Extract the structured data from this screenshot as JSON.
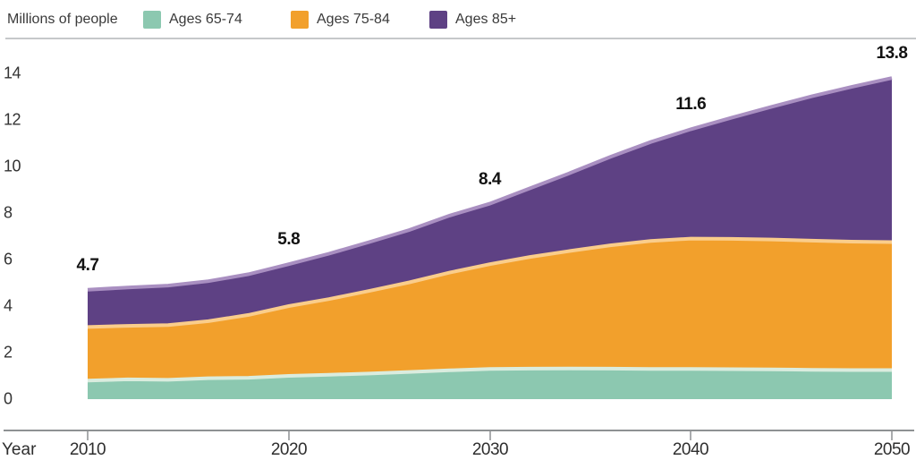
{
  "chart_data": {
    "type": "area",
    "stacked": true,
    "title": "",
    "ylabel": "Millions of people",
    "xlabel": "Year",
    "grid": false,
    "legend_position": "top",
    "x": [
      2010,
      2012,
      2014,
      2016,
      2018,
      2020,
      2022,
      2024,
      2026,
      2028,
      2030,
      2032,
      2034,
      2036,
      2038,
      2040,
      2042,
      2044,
      2046,
      2048,
      2050
    ],
    "series": [
      {
        "name": "Ages 65-74",
        "color": "#8CC8B0",
        "edge_color": "#DAECDE",
        "values": [
          0.8,
          0.85,
          0.83,
          0.9,
          0.92,
          1.0,
          1.05,
          1.1,
          1.17,
          1.24,
          1.3,
          1.31,
          1.32,
          1.31,
          1.3,
          1.3,
          1.29,
          1.28,
          1.26,
          1.25,
          1.25
        ]
      },
      {
        "name": "Ages 75-84",
        "color": "#F2A02C",
        "edge_color": "#FACD8B",
        "values": [
          2.3,
          2.3,
          2.35,
          2.45,
          2.7,
          3.0,
          3.25,
          3.55,
          3.85,
          4.2,
          4.5,
          4.8,
          5.05,
          5.3,
          5.5,
          5.6,
          5.6,
          5.58,
          5.55,
          5.52,
          5.5
        ]
      },
      {
        "name": "Ages 85+",
        "color": "#5E4184",
        "edge_color": "#A98FC1",
        "values": [
          1.6,
          1.65,
          1.7,
          1.72,
          1.75,
          1.8,
          1.95,
          2.1,
          2.25,
          2.45,
          2.6,
          2.95,
          3.35,
          3.8,
          4.25,
          4.7,
          5.2,
          5.7,
          6.2,
          6.65,
          7.05
        ]
      }
    ],
    "totals_labels": [
      {
        "year": 2010,
        "label": "4.7"
      },
      {
        "year": 2020,
        "label": "5.8"
      },
      {
        "year": 2030,
        "label": "8.4"
      },
      {
        "year": 2040,
        "label": "11.6"
      },
      {
        "year": 2050,
        "label": "13.8"
      }
    ],
    "yaxis": {
      "range": [
        0,
        14
      ],
      "ticks": [
        "14",
        "12",
        "10",
        "8",
        "6",
        "4",
        "2",
        "0"
      ]
    },
    "xaxis": {
      "label": "Year",
      "ticks": [
        "2010",
        "2020",
        "2030",
        "2040",
        "2050"
      ]
    }
  },
  "style_colors": {
    "axis_line": "#8E9193",
    "separator": "#C6C8CA",
    "tick_text": "#2E2E2E",
    "data_label_text": "#121212"
  }
}
